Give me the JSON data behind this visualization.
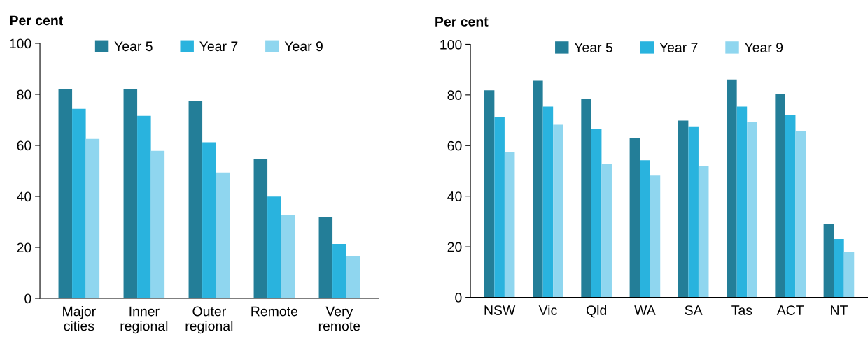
{
  "chart_data": [
    {
      "type": "bar",
      "ylabel": "Per cent",
      "categories": [
        "Major\ncities",
        "Inner\nregional",
        "Outer\nregional",
        "Remote",
        "Very\nremote"
      ],
      "ylim": [
        0,
        100
      ],
      "yticks": [
        0,
        20,
        40,
        60,
        80,
        100
      ],
      "legend": "top",
      "grid": false,
      "series": [
        {
          "name": "Year 5",
          "color": "#237e98",
          "values": [
            82.0,
            82.0,
            77.4,
            54.8,
            31.8
          ]
        },
        {
          "name": "Year 7",
          "color": "#29b3de",
          "values": [
            74.3,
            71.6,
            61.2,
            39.9,
            21.4
          ]
        },
        {
          "name": "Year 9",
          "color": "#8fd6ef",
          "values": [
            62.5,
            57.9,
            49.4,
            32.7,
            16.5
          ]
        }
      ]
    },
    {
      "type": "bar",
      "ylabel": "Per cent",
      "categories": [
        "NSW",
        "Vic",
        "Qld",
        "WA",
        "SA",
        "Tas",
        "ACT",
        "NT"
      ],
      "ylim": [
        0,
        100
      ],
      "yticks": [
        0,
        20,
        40,
        60,
        80,
        100
      ],
      "legend": "top",
      "grid": false,
      "series": [
        {
          "name": "Year 5",
          "color": "#237e98",
          "values": [
            81.8,
            85.6,
            78.5,
            63.1,
            69.9,
            86.1,
            80.5,
            29.1
          ]
        },
        {
          "name": "Year 7",
          "color": "#29b3de",
          "values": [
            71.2,
            75.4,
            66.6,
            54.2,
            67.3,
            75.4,
            72.1,
            23.1
          ]
        },
        {
          "name": "Year 9",
          "color": "#8fd6ef",
          "values": [
            57.6,
            68.2,
            52.9,
            48.1,
            52.1,
            69.5,
            65.7,
            18.1
          ]
        }
      ]
    }
  ]
}
